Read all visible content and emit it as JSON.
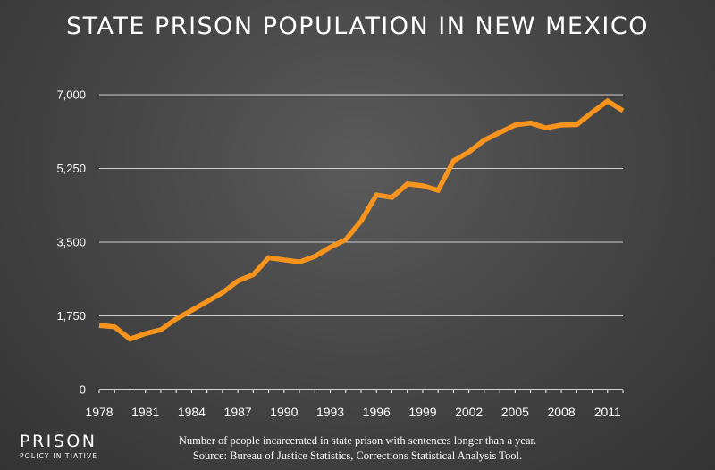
{
  "title": "STATE PRISON POPULATION IN NEW MEXICO",
  "footnote": "Number of people incarcerated in state prison with sentences longer than a year.",
  "source": "Source: Bureau of Justice Statistics, Corrections Statistical Analysis Tool.",
  "brand": {
    "name": "PRISON",
    "sub": "POLICY INITIATIVE"
  },
  "colors": {
    "line": "#f7941d",
    "grid": "#cfcfcf",
    "axis": "#ffffff",
    "text": "#ffffff"
  },
  "chart_data": {
    "type": "line",
    "title": "STATE PRISON POPULATION IN NEW MEXICO",
    "xlabel": "",
    "ylabel": "",
    "xlim": [
      1978,
      2012
    ],
    "ylim": [
      0,
      7000
    ],
    "x_ticks": [
      1978,
      1981,
      1984,
      1987,
      1990,
      1993,
      1996,
      1999,
      2002,
      2005,
      2008,
      2011
    ],
    "y_ticks": [
      0,
      1750,
      3500,
      5250,
      7000
    ],
    "y_tick_labels": [
      "0",
      "1,750",
      "3,500",
      "5,250",
      "7,000"
    ],
    "grid": "horizontal",
    "series": [
      {
        "name": "",
        "x": [
          1978,
          1979,
          1980,
          1981,
          1982,
          1983,
          1984,
          1985,
          1986,
          1987,
          1988,
          1989,
          1990,
          1991,
          1992,
          1993,
          1994,
          1995,
          1996,
          1997,
          1998,
          1999,
          2000,
          2001,
          2002,
          2003,
          2004,
          2005,
          2006,
          2007,
          2008,
          2009,
          2010,
          2011,
          2012
        ],
        "y": [
          1520,
          1490,
          1200,
          1330,
          1420,
          1680,
          1880,
          2090,
          2300,
          2580,
          2730,
          3130,
          3080,
          3030,
          3160,
          3380,
          3560,
          4000,
          4620,
          4560,
          4880,
          4840,
          4730,
          5430,
          5640,
          5920,
          6100,
          6280,
          6330,
          6210,
          6280,
          6290,
          6580,
          6850,
          6620
        ]
      }
    ]
  }
}
